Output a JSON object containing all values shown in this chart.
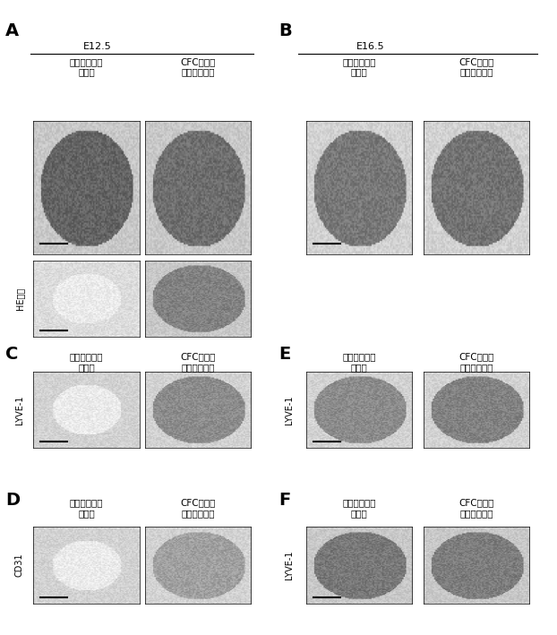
{
  "panel_A_label": "A",
  "panel_B_label": "B",
  "panel_C_label": "C",
  "panel_D_label": "D",
  "panel_E_label": "E",
  "panel_F_label": "F",
  "E125_label": "E12.5",
  "E165_label": "E16.5",
  "control_label": "コントロール\nマウス",
  "cfc_label": "CFC症候群\nモデルマウス",
  "he_label": "HE染色",
  "lyve1_label": "LYVE-1",
  "cd31_label": "CD31",
  "bg_color": "#ffffff",
  "panel_label_fontsize": 14,
  "header_fontsize": 8,
  "sublabel_fontsize": 7.5,
  "side_label_fontsize": 7
}
